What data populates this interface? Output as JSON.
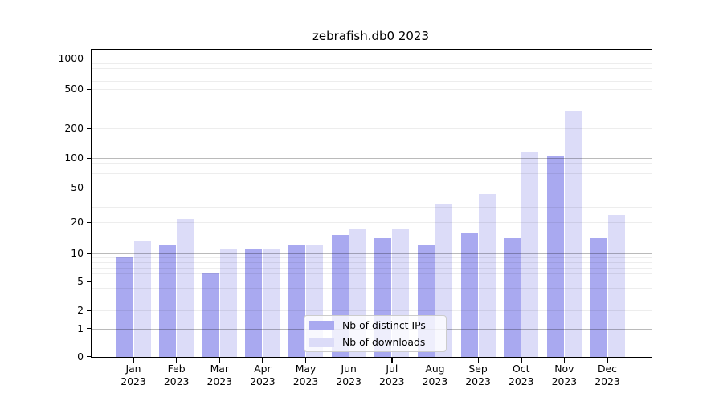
{
  "chart_data": {
    "type": "bar",
    "title": "zebrafish.db0 2023",
    "categories": [
      "Jan",
      "Feb",
      "Mar",
      "Apr",
      "May",
      "Jun",
      "Jul",
      "Aug",
      "Sep",
      "Oct",
      "Nov",
      "Dec"
    ],
    "category_year": "2023",
    "series": [
      {
        "name": "Nb of distinct IPs",
        "color": "#a9a9f0",
        "values": [
          9,
          12,
          6,
          11,
          12,
          15,
          14,
          12,
          16,
          14,
          105,
          14
        ]
      },
      {
        "name": "Nb of downloads",
        "color": "#dcdcf8",
        "values": [
          13,
          22,
          11,
          11,
          12,
          17,
          17,
          33,
          42,
          114,
          295,
          24
        ]
      }
    ],
    "xlabel": "",
    "ylabel": "",
    "y_ticks": [
      0,
      1,
      2,
      5,
      10,
      20,
      50,
      100,
      200,
      500,
      1000
    ],
    "yscale": "symlog",
    "ylim": [
      0,
      1250
    ],
    "grid": true,
    "grid_major_color": "#bababa",
    "grid_minor_color": "#ededed",
    "legend_position": "inside lower center"
  }
}
